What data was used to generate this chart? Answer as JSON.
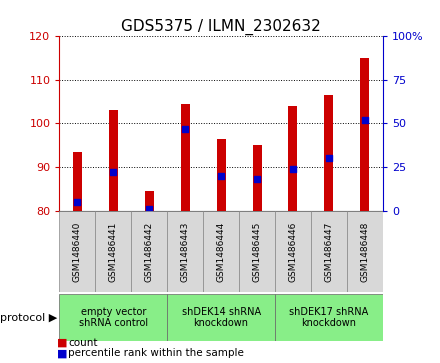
{
  "title": "GDS5375 / ILMN_2302632",
  "samples": [
    "GSM1486440",
    "GSM1486441",
    "GSM1486442",
    "GSM1486443",
    "GSM1486444",
    "GSM1486445",
    "GSM1486446",
    "GSM1486447",
    "GSM1486448"
  ],
  "counts": [
    93.5,
    103.0,
    84.5,
    104.5,
    96.5,
    95.0,
    104.0,
    106.5,
    115.0
  ],
  "percentile_ranks": [
    5,
    22,
    1,
    47,
    20,
    18,
    24,
    30,
    52
  ],
  "bar_bottom": 80,
  "ylim_left": [
    80,
    120
  ],
  "ylim_right": [
    0,
    100
  ],
  "yticks_left": [
    80,
    90,
    100,
    110,
    120
  ],
  "yticks_right": [
    0,
    25,
    50,
    75,
    100
  ],
  "left_color": "#cc0000",
  "right_color": "#0000cc",
  "bar_color": "#cc0000",
  "dot_color": "#0000cc",
  "protocols": [
    {
      "label": "empty vector\nshRNA control",
      "start": 0,
      "end": 3,
      "color": "#88ee88"
    },
    {
      "label": "shDEK14 shRNA\nknockdown",
      "start": 3,
      "end": 6,
      "color": "#88ee88"
    },
    {
      "label": "shDEK17 shRNA\nknockdown",
      "start": 6,
      "end": 9,
      "color": "#88ee88"
    }
  ],
  "protocol_label": "protocol",
  "legend_count_label": "count",
  "legend_pct_label": "percentile rank within the sample",
  "title_fontsize": 11
}
